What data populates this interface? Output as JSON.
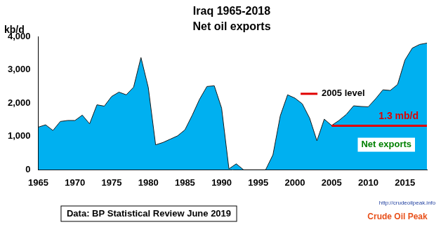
{
  "chart_data": {
    "type": "area",
    "title": "Iraq 1965-2018",
    "subtitle": "Net oil exports",
    "y_label": "kb/d",
    "x": [
      1965,
      1966,
      1967,
      1968,
      1969,
      1970,
      1971,
      1972,
      1973,
      1974,
      1975,
      1976,
      1977,
      1978,
      1979,
      1980,
      1981,
      1982,
      1983,
      1984,
      1985,
      1986,
      1987,
      1988,
      1989,
      1990,
      1991,
      1992,
      1993,
      1994,
      1995,
      1996,
      1997,
      1998,
      1999,
      2000,
      2001,
      2002,
      2003,
      2004,
      2005,
      2006,
      2007,
      2008,
      2009,
      2010,
      2011,
      2012,
      2013,
      2014,
      2015,
      2016,
      2017,
      2018
    ],
    "series": [
      {
        "name": "Net exports",
        "type": "area",
        "color": "#00b0f0",
        "values": [
          1280,
          1350,
          1180,
          1450,
          1480,
          1480,
          1640,
          1380,
          1950,
          1910,
          2200,
          2330,
          2250,
          2480,
          3370,
          2470,
          750,
          820,
          920,
          1020,
          1200,
          1640,
          2120,
          2500,
          2520,
          1850,
          30,
          180,
          0,
          0,
          0,
          0,
          450,
          1620,
          2250,
          2150,
          1980,
          1550,
          870,
          1520,
          1330,
          1480,
          1660,
          1920,
          1900,
          1890,
          2130,
          2400,
          2380,
          2560,
          3290,
          3650,
          3760,
          3800
        ]
      },
      {
        "name": "2005 level",
        "type": "line",
        "color": "#e00000",
        "x": [
          2005,
          2018
        ],
        "values": [
          1320,
          1320
        ]
      }
    ],
    "xlim": [
      1965,
      2018
    ],
    "xticks": [
      1965,
      1970,
      1975,
      1980,
      1985,
      1990,
      1995,
      2000,
      2005,
      2010,
      2015
    ],
    "ylim": [
      0,
      4000
    ],
    "yticks": [
      0,
      {
        "value": 1000,
        "label": "1,000"
      },
      {
        "value": 2000,
        "label": "2,000"
      },
      {
        "value": 3000,
        "label": "3,000"
      },
      {
        "value": 4000,
        "label": "4,000"
      }
    ],
    "grid": false,
    "annotations": [
      {
        "text": "1.3 mb/d",
        "color": "#e00000"
      },
      {
        "text": "http://crudeoilpeak.info",
        "color": "#1f3f9f"
      },
      {
        "text": "Crude Oil Peak",
        "color": "#e8501a"
      }
    ],
    "source": "Data: BP Statistical Review June 2019"
  }
}
